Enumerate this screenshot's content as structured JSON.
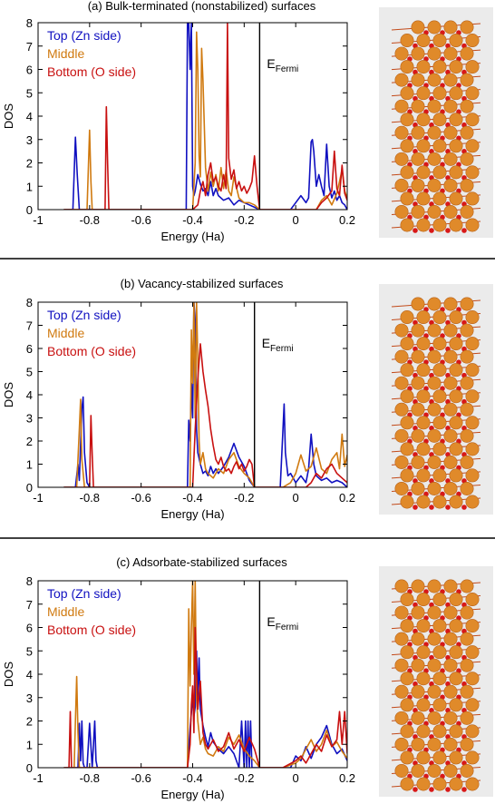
{
  "colors": {
    "top": "#1010c0",
    "middle": "#d07a10",
    "bottom": "#c81010",
    "atom": "#e08a2a",
    "oxygen": "#d81818",
    "panel_bg": "#ebebeb"
  },
  "chart_data": [
    {
      "type": "line",
      "title": "(a) Bulk-terminated (nonstabilized) surfaces",
      "xlabel": "Energy (Ha)",
      "ylabel": "DOS",
      "xlim": [
        -1,
        0.2
      ],
      "ylim": [
        0,
        8
      ],
      "xticks": [
        "-1",
        "-0.8",
        "-0.6",
        "-0.4",
        "-0.2",
        "0",
        "0.2"
      ],
      "yticks": [
        "0",
        "1",
        "2",
        "3",
        "4",
        "5",
        "6",
        "7",
        "8"
      ],
      "fermi_label": "E",
      "fermi_sub": "Fermi",
      "fermi_x": -0.14,
      "legend_position": "top-left",
      "series": [
        {
          "name": "Top (Zn side)",
          "color_key": "top",
          "x": [
            -0.9,
            -0.865,
            -0.855,
            -0.848,
            -0.84,
            -0.5,
            -0.425,
            -0.42,
            -0.415,
            -0.41,
            -0.405,
            -0.4,
            -0.395,
            -0.39,
            -0.38,
            -0.37,
            -0.36,
            -0.35,
            -0.34,
            -0.33,
            -0.32,
            -0.31,
            -0.3,
            -0.28,
            -0.26,
            -0.24,
            -0.22,
            -0.2,
            -0.18,
            -0.16,
            -0.14,
            -0.02,
            0.0,
            0.02,
            0.04,
            0.05,
            0.06,
            0.065,
            0.07,
            0.08,
            0.09,
            0.1,
            0.11,
            0.12,
            0.13,
            0.14,
            0.15,
            0.16,
            0.17,
            0.18,
            0.19,
            0.2
          ],
          "y": [
            0,
            0,
            3.1,
            1.5,
            0,
            0,
            0,
            8,
            8,
            6,
            8,
            1,
            0.6,
            0.8,
            1.5,
            1.1,
            0.8,
            0.9,
            0.6,
            1.2,
            0.6,
            0.9,
            0.6,
            0.4,
            0.5,
            0.2,
            0.4,
            0.3,
            0.2,
            0.1,
            0,
            0,
            0.3,
            0.6,
            0.3,
            0.5,
            2.9,
            3.0,
            2.5,
            1.0,
            1.5,
            1.0,
            0.6,
            2.8,
            1.0,
            0.5,
            0.8,
            0.4,
            0.6,
            0.3,
            0.2,
            0
          ]
        },
        {
          "name": "Middle",
          "color_key": "middle",
          "x": [
            -0.9,
            -0.81,
            -0.8,
            -0.795,
            -0.79,
            -0.5,
            -0.4,
            -0.39,
            -0.385,
            -0.38,
            -0.375,
            -0.37,
            -0.365,
            -0.36,
            -0.35,
            -0.34,
            -0.33,
            -0.32,
            -0.31,
            -0.3,
            -0.29,
            -0.28,
            -0.27,
            -0.26,
            -0.25,
            -0.24,
            -0.22,
            -0.2,
            -0.18,
            -0.16,
            -0.14,
            0.0,
            0.04,
            0.08,
            0.1,
            0.12,
            0.14,
            0.16,
            0.18,
            0.19,
            0.2
          ],
          "y": [
            0,
            0,
            3.4,
            1.2,
            0,
            0,
            0,
            2,
            7.6,
            6,
            2.3,
            1.4,
            6.9,
            5.5,
            1.8,
            0.8,
            1.6,
            1.0,
            1.5,
            0.8,
            1.8,
            0.9,
            1.7,
            0.8,
            0.6,
            1.4,
            0.5,
            0.3,
            0.3,
            0.2,
            0,
            0,
            0,
            0,
            0.4,
            0.6,
            0.2,
            0.7,
            1.7,
            0.8,
            0.5
          ]
        },
        {
          "name": "Bottom (O side)",
          "color_key": "bottom",
          "x": [
            -0.9,
            -0.74,
            -0.735,
            -0.73,
            -0.725,
            -0.5,
            -0.4,
            -0.38,
            -0.37,
            -0.36,
            -0.35,
            -0.34,
            -0.33,
            -0.32,
            -0.31,
            -0.3,
            -0.29,
            -0.28,
            -0.27,
            -0.265,
            -0.26,
            -0.25,
            -0.24,
            -0.23,
            -0.22,
            -0.21,
            -0.2,
            -0.19,
            -0.18,
            -0.17,
            -0.16,
            -0.15,
            -0.14,
            0.0,
            0.04,
            0.08,
            0.1,
            0.12,
            0.14,
            0.15,
            0.16,
            0.17,
            0.18,
            0.19,
            0.2
          ],
          "y": [
            0,
            0,
            4.4,
            2.0,
            0,
            0,
            0,
            0.2,
            0.8,
            1.2,
            0.6,
            1.5,
            2.0,
            1.2,
            1.4,
            1.0,
            0.8,
            1.5,
            0.9,
            8,
            2.2,
            1.3,
            1.7,
            0.9,
            1.2,
            0.8,
            1.0,
            0.7,
            0.9,
            1.2,
            2.3,
            1.0,
            0,
            0,
            0,
            0,
            0.3,
            0.5,
            0.8,
            2.5,
            0.9,
            0.6,
            1.9,
            0.7,
            0.4
          ]
        }
      ],
      "legend_entries": [
        "Top (Zn side)",
        "Middle",
        "Bottom (O side)"
      ]
    },
    {
      "type": "line",
      "title": "(b) Vacancy-stabilized surfaces",
      "xlabel": "Energy (Ha)",
      "ylabel": "DOS",
      "xlim": [
        -1,
        0.2
      ],
      "ylim": [
        0,
        8
      ],
      "xticks": [
        "-1",
        "-0.8",
        "-0.6",
        "-0.4",
        "-0.2",
        "0",
        "0.2"
      ],
      "yticks": [
        "0",
        "1",
        "2",
        "3",
        "4",
        "5",
        "6",
        "7",
        "8"
      ],
      "fermi_label": "E",
      "fermi_sub": "Fermi",
      "fermi_x": -0.16,
      "legend_position": "top-left",
      "series": [
        {
          "name": "Top (Zn side)",
          "color_key": "top",
          "x": [
            -0.9,
            -0.855,
            -0.845,
            -0.84,
            -0.83,
            -0.825,
            -0.82,
            -0.81,
            -0.8,
            -0.5,
            -0.42,
            -0.415,
            -0.41,
            -0.405,
            -0.4,
            -0.395,
            -0.39,
            -0.385,
            -0.38,
            -0.37,
            -0.36,
            -0.35,
            -0.34,
            -0.33,
            -0.32,
            -0.31,
            -0.3,
            -0.28,
            -0.26,
            -0.24,
            -0.22,
            -0.2,
            -0.18,
            -0.16,
            -0.1,
            -0.06,
            -0.05,
            -0.045,
            -0.04,
            -0.03,
            -0.02,
            0.0,
            0.02,
            0.04,
            0.05,
            0.06,
            0.07,
            0.08,
            0.1,
            0.12,
            0.14,
            0.16,
            0.18,
            0.2
          ],
          "y": [
            0,
            0,
            1.0,
            0.3,
            3.4,
            3.9,
            1.5,
            0.2,
            0,
            0,
            0,
            2.9,
            2.0,
            4.5,
            3.0,
            8,
            7.2,
            2.5,
            1.5,
            1.0,
            0.6,
            0.7,
            0.5,
            0.9,
            0.6,
            0.8,
            0.6,
            0.9,
            1.3,
            1.9,
            1.3,
            0.9,
            0.3,
            0,
            0,
            0,
            2.4,
            3.6,
            1.5,
            0.5,
            0.6,
            0.2,
            0.5,
            0.2,
            0.8,
            2.3,
            1.0,
            0.5,
            0.3,
            0.4,
            0.2,
            0.3,
            0.2,
            0
          ]
        },
        {
          "name": "Middle",
          "color_key": "middle",
          "x": [
            -0.9,
            -0.85,
            -0.84,
            -0.835,
            -0.83,
            -0.82,
            -0.5,
            -0.41,
            -0.405,
            -0.4,
            -0.395,
            -0.39,
            -0.385,
            -0.38,
            -0.375,
            -0.37,
            -0.36,
            -0.35,
            -0.34,
            -0.32,
            -0.3,
            -0.28,
            -0.26,
            -0.24,
            -0.22,
            -0.2,
            -0.18,
            -0.16,
            -0.05,
            -0.02,
            0.0,
            0.02,
            0.04,
            0.06,
            0.08,
            0.1,
            0.12,
            0.14,
            0.16,
            0.17,
            0.18,
            0.19,
            0.2
          ],
          "y": [
            0,
            0,
            2.5,
            3.8,
            1.2,
            0,
            0,
            0,
            6.8,
            4.5,
            8,
            3.0,
            8,
            5.5,
            2.0,
            1.0,
            1.5,
            0.8,
            0.6,
            0.4,
            0.8,
            0.6,
            1.2,
            1.5,
            0.9,
            0.6,
            0.4,
            0,
            0,
            0.2,
            0.6,
            1.4,
            0.7,
            0.9,
            1.7,
            0.8,
            0.6,
            1.2,
            1.5,
            0.8,
            2.3,
            0.9,
            1.4
          ]
        },
        {
          "name": "Bottom (O side)",
          "color_key": "bottom",
          "x": [
            -0.9,
            -0.8,
            -0.795,
            -0.79,
            -0.785,
            -0.5,
            -0.4,
            -0.39,
            -0.38,
            -0.37,
            -0.36,
            -0.35,
            -0.34,
            -0.33,
            -0.32,
            -0.31,
            -0.3,
            -0.29,
            -0.28,
            -0.27,
            -0.26,
            -0.25,
            -0.24,
            -0.23,
            -0.22,
            -0.21,
            -0.2,
            -0.19,
            -0.18,
            -0.17,
            -0.16,
            -0.05,
            0.0,
            0.04,
            0.06,
            0.08,
            0.1,
            0.12,
            0.14,
            0.16,
            0.18,
            0.2
          ],
          "y": [
            0,
            0,
            3.1,
            1.4,
            0,
            0,
            0,
            2.5,
            4.7,
            6.2,
            5.0,
            4.2,
            3.5,
            2.5,
            1.8,
            1.2,
            1.0,
            1.3,
            0.9,
            0.7,
            0.8,
            0.6,
            0.9,
            1.1,
            0.8,
            1.0,
            0.7,
            0.9,
            1.2,
            1.0,
            0,
            0,
            0,
            0,
            0.2,
            0.6,
            0.4,
            0.8,
            1.0,
            0.6,
            0.4,
            0.2
          ]
        }
      ],
      "legend_entries": [
        "Top (Zn side)",
        "Middle",
        "Bottom (O side)"
      ]
    },
    {
      "type": "line",
      "title": "(c) Adsorbate-stabilized surfaces",
      "xlabel": "Energy (Ha)",
      "ylabel": "DOS",
      "xlim": [
        -1,
        0.2
      ],
      "ylim": [
        0,
        8
      ],
      "xticks": [
        "-1",
        "-0.8",
        "-0.6",
        "-0.4",
        "-0.2",
        "0",
        "0.2"
      ],
      "yticks": [
        "0",
        "1",
        "2",
        "3",
        "4",
        "5",
        "6",
        "7",
        "8"
      ],
      "fermi_label": "E",
      "fermi_sub": "Fermi",
      "fermi_x": -0.14,
      "legend_position": "top-left",
      "series": [
        {
          "name": "Top (Zn side)",
          "color_key": "top",
          "x": [
            -0.9,
            -0.845,
            -0.84,
            -0.835,
            -0.83,
            -0.825,
            -0.82,
            -0.81,
            -0.8,
            -0.79,
            -0.78,
            -0.775,
            -0.77,
            -0.5,
            -0.42,
            -0.41,
            -0.4,
            -0.395,
            -0.39,
            -0.385,
            -0.38,
            -0.375,
            -0.37,
            -0.36,
            -0.35,
            -0.34,
            -0.33,
            -0.32,
            -0.3,
            -0.28,
            -0.26,
            -0.24,
            -0.22,
            -0.21,
            -0.2,
            -0.195,
            -0.19,
            -0.185,
            -0.18,
            -0.175,
            -0.17,
            -0.16,
            -0.14,
            -0.02,
            0.0,
            0.02,
            0.04,
            0.06,
            0.08,
            0.1,
            0.12,
            0.14,
            0.16,
            0.18,
            0.2
          ],
          "y": [
            0,
            0,
            1.9,
            0.3,
            2.0,
            0.2,
            0,
            0,
            1.9,
            0,
            2.0,
            0.3,
            0,
            0,
            0,
            1.7,
            3.0,
            2.2,
            2.6,
            5.0,
            3.0,
            4.7,
            2.5,
            1.8,
            1.3,
            0.9,
            1.5,
            1.1,
            0.8,
            0.6,
            0.9,
            0.6,
            0,
            2.0,
            0,
            2.0,
            0,
            2.0,
            0,
            2.0,
            0,
            0,
            0,
            0,
            0.5,
            0.3,
            0.9,
            0.4,
            1.0,
            1.3,
            1.8,
            1.0,
            0.6,
            0.8,
            0.3
          ]
        },
        {
          "name": "Middle",
          "color_key": "middle",
          "x": [
            -0.9,
            -0.86,
            -0.855,
            -0.85,
            -0.845,
            -0.84,
            -0.5,
            -0.42,
            -0.415,
            -0.41,
            -0.405,
            -0.4,
            -0.395,
            -0.39,
            -0.385,
            -0.38,
            -0.375,
            -0.37,
            -0.36,
            -0.35,
            -0.34,
            -0.32,
            -0.3,
            -0.28,
            -0.26,
            -0.24,
            -0.22,
            -0.2,
            -0.18,
            -0.16,
            -0.14,
            -0.05,
            0.0,
            0.02,
            0.04,
            0.06,
            0.08,
            0.1,
            0.12,
            0.14,
            0.16,
            0.18,
            0.2
          ],
          "y": [
            0,
            0,
            2.0,
            3.9,
            1.5,
            0,
            0,
            0,
            6.8,
            3.5,
            6.0,
            8,
            4.0,
            8,
            3.0,
            2.0,
            1.5,
            1.0,
            1.3,
            0.8,
            0.6,
            0.5,
            0.9,
            0.7,
            1.3,
            1.0,
            1.4,
            0.8,
            0.5,
            0.3,
            0,
            0,
            0.2,
            0.4,
            0.8,
            1.2,
            0.7,
            1.0,
            1.6,
            0.9,
            1.1,
            0.7,
            0.4
          ]
        },
        {
          "name": "Bottom (O side)",
          "color_key": "bottom",
          "x": [
            -0.9,
            -0.88,
            -0.875,
            -0.87,
            -0.5,
            -0.42,
            -0.41,
            -0.405,
            -0.4,
            -0.395,
            -0.39,
            -0.38,
            -0.37,
            -0.36,
            -0.35,
            -0.34,
            -0.32,
            -0.3,
            -0.28,
            -0.26,
            -0.24,
            -0.22,
            -0.2,
            -0.18,
            -0.16,
            -0.14,
            -0.05,
            0.0,
            0.02,
            0.04,
            0.06,
            0.08,
            0.1,
            0.12,
            0.14,
            0.16,
            0.17,
            0.18,
            0.19,
            0.2
          ],
          "y": [
            0,
            0,
            2.4,
            0,
            0,
            0,
            1.0,
            2.7,
            3.5,
            1.5,
            6.0,
            2.5,
            3.7,
            1.5,
            1.0,
            0.8,
            1.2,
            0.7,
            0.9,
            1.5,
            0.8,
            1.2,
            0.7,
            1.3,
            0.8,
            0,
            0,
            0.3,
            0.5,
            0.2,
            0.6,
            1.0,
            0.7,
            1.4,
            0.9,
            1.2,
            2.4,
            1.0,
            2.4,
            0.6
          ]
        }
      ],
      "legend_entries": [
        "Top (Zn side)",
        "Middle",
        "Bottom (O side)"
      ]
    }
  ]
}
